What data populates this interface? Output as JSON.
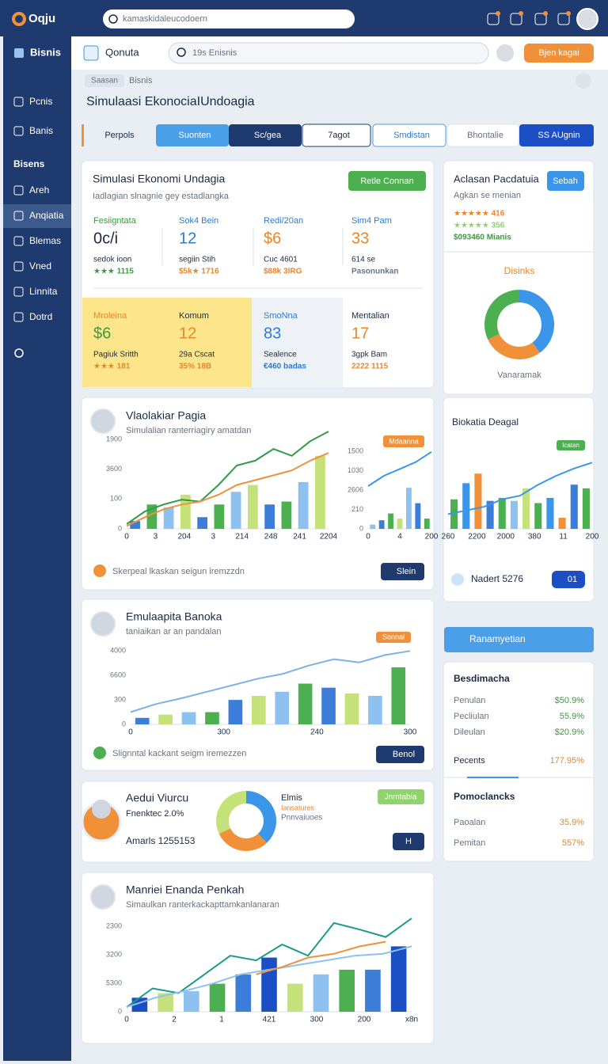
{
  "topbar": {
    "logo": "Oqju",
    "url": "kamaskidaleucodoern"
  },
  "sidebar": {
    "brand": "Bisnis",
    "items": [
      "Pcnis",
      "Banis"
    ],
    "section": "Bisens",
    "subitems": [
      "Areh",
      "Anqiatia",
      "Blemas",
      "Vned",
      "Linnita",
      "Dotrd"
    ]
  },
  "header": {
    "app": "Qonuta",
    "search": "19s Enisnis",
    "button": "Bjen kagai"
  },
  "breadcrumb": [
    "Saasan",
    "Bisnis"
  ],
  "page_title": "Simulaasi EkonociaIUndoagia",
  "tabs": [
    "Perpols",
    "Suonten",
    "Sc/gea",
    "7agot",
    "Smdistan",
    "Bhontalie",
    "SS AUgnin"
  ],
  "summary": {
    "title": "Simulasi Ekonomi Undagia",
    "subtitle": "Iadlagian slnagnie gey estadlangka",
    "button": "Retle Connan",
    "stats": [
      {
        "label": "Fesiigntata",
        "value": "0c/i",
        "sub": "sedok ioon",
        "rating": "★★★ 1115"
      },
      {
        "label": "Sok4 Bein",
        "value": "12",
        "sub": "segiin Stih",
        "rating": "$5k★ 1716"
      },
      {
        "label": "Redi/20an",
        "value": "$6",
        "sub": "Cuc 4601",
        "rating": "$88k 3IRG"
      },
      {
        "label": "Sim4 Pam",
        "value": "33",
        "sub": "614 se",
        "rating": "Pasonunkan"
      },
      {
        "label": "Mroleina",
        "value": "$6",
        "sub": "Pagiuk Sritth",
        "rating": "★★★ 181"
      },
      {
        "label": "Komum",
        "value": "12",
        "sub": "29a Cscat",
        "rating": "35% 18B"
      },
      {
        "label": "SmoNna",
        "value": "83",
        "sub": "Sealence",
        "rating": "€460 badas"
      },
      {
        "label": "Mentalian",
        "value": "17",
        "sub": "3gpk Bam",
        "rating": "2222 1115"
      }
    ]
  },
  "side_card": {
    "title": "Aclasan Pacdatuia",
    "button": "Sebah",
    "subtitle": "Agkan se menian",
    "ratings": [
      "★★★★★ 416",
      "★★★★★ 356",
      "$093460 Mianis"
    ],
    "donut_title": "Disinks",
    "caption": "Vanaramak"
  },
  "card_a": {
    "title": "Vlaolakiar Pagia",
    "subtitle": "Simulalian ranterriagiry amatdan",
    "footer": "Skerpeal lkaskan seigun iremzzdn",
    "button": "Slein",
    "badge": "Mdaanna"
  },
  "card_b": {
    "title": "Biokatia Deagal",
    "badge": "Icatan",
    "footer": "Nadert 5276",
    "button": "01"
  },
  "card_c": {
    "title": "Emulaapita Banoka",
    "subtitle": "taniaikan ar an pandalan",
    "badge": "Sonnal",
    "footer": "Slignntal kackant seigm iremezzen",
    "button": "Benol"
  },
  "card_d": {
    "title": "Aedui Viurcu",
    "line1": "Fnenktec 2.0%",
    "line2": "Amarls 1255153",
    "legend_title": "Elmis",
    "legend_1": "Iansatures",
    "legend_2": "Pnnvaiuoes",
    "badge": "Jnmtabia",
    "button": "H"
  },
  "card_e": {
    "title": "Manriei Enanda Penkah",
    "subtitle": "Simaulkan ranterkackapttamkanlanaran"
  },
  "right_panel": {
    "tab": "Ranamyetian",
    "group_1": "Besdimacha",
    "rows_1": [
      [
        "Penulan",
        "$50.9%"
      ],
      [
        "Pecliulan",
        "55.9%"
      ],
      [
        "Dileulan",
        "$20.9%"
      ],
      [
        "Pecents",
        "177.95%"
      ]
    ],
    "group_2": "Pomoclancks",
    "rows_2": [
      [
        "Paoalan",
        "35.9%"
      ],
      [
        "Pemitan",
        "557%"
      ]
    ]
  },
  "chart_data": [
    {
      "type": "combo",
      "ylim": [
        0,
        100
      ],
      "y_labels": [
        "1900",
        "3600",
        "100",
        "0"
      ],
      "x_labels": [
        "0",
        "3",
        "204",
        "3",
        "214",
        "248",
        "241",
        "2204"
      ],
      "palette": [
        "#3b7dd8",
        "#4caf50",
        "#8ec0f0",
        "#c5e17a"
      ],
      "series": [
        {
          "kind": "bar",
          "values": [
            8,
            25,
            22,
            35,
            12,
            25,
            38,
            45,
            25,
            28,
            48,
            75
          ]
        },
        {
          "kind": "line",
          "color": "#2e9b4a",
          "values": [
            5,
            18,
            25,
            30,
            28,
            45,
            65,
            70,
            82,
            75,
            90,
            100
          ]
        },
        {
          "kind": "line",
          "color": "#f0913a",
          "values": [
            3,
            12,
            20,
            25,
            28,
            35,
            45,
            50,
            55,
            60,
            70,
            78
          ]
        }
      ]
    },
    {
      "type": "combo",
      "ylim": [
        0,
        100
      ],
      "y_labels": [
        "1500",
        "1030",
        "2606",
        "210",
        "0"
      ],
      "x_labels": [
        "0",
        "4",
        "200"
      ],
      "palette": [
        "#8ec0f0",
        "#3b7dd8",
        "#4caf50",
        "#c5e17a"
      ],
      "series": [
        {
          "kind": "bar",
          "values": [
            5,
            10,
            18,
            12,
            48,
            30,
            12
          ]
        },
        {
          "kind": "line",
          "color": "#3b95e8",
          "values": [
            50,
            62,
            70,
            78,
            90
          ]
        }
      ]
    },
    {
      "type": "combo",
      "ylim": [
        0,
        100
      ],
      "y_labels": [],
      "x_labels": [
        "260",
        "2200",
        "2000",
        "380",
        "11",
        "200"
      ],
      "palette": [
        "#4caf50",
        "#3b95e8",
        "#f0913a",
        "#3b7dd8",
        "#4caf50",
        "#8ec0f0",
        "#c5e17a"
      ],
      "series": [
        {
          "kind": "bar",
          "values": [
            40,
            62,
            75,
            38,
            42,
            38,
            55,
            35,
            42,
            15,
            60,
            55
          ]
        },
        {
          "kind": "line",
          "color": "#3b95e8",
          "values": [
            20,
            25,
            30,
            40,
            45,
            60,
            72,
            82,
            90
          ]
        }
      ]
    },
    {
      "type": "combo",
      "ylim": [
        0,
        100
      ],
      "y_labels": [
        "4000",
        "6600",
        "300",
        "0"
      ],
      "x_labels": [
        "0",
        "300",
        "240",
        "300"
      ],
      "palette": [
        "#3b7dd8",
        "#c5e17a",
        "#8ec0f0",
        "#4caf50"
      ],
      "series": [
        {
          "kind": "bar",
          "values": [
            8,
            12,
            15,
            15,
            30,
            35,
            40,
            50,
            45,
            38,
            35,
            70
          ]
        },
        {
          "kind": "line",
          "color": "#7fb1e3",
          "values": [
            15,
            25,
            32,
            40,
            48,
            56,
            62,
            72,
            80,
            76,
            85,
            90
          ]
        }
      ]
    },
    {
      "type": "combo",
      "ylim": [
        0,
        100
      ],
      "y_labels": [
        "2300",
        "3200",
        "5300",
        "0"
      ],
      "x_labels": [
        "0",
        "2",
        "1",
        "421",
        "300",
        "200",
        "x8n"
      ],
      "palette": [
        "#1d4fc4",
        "#c5e17a",
        "#8ec0f0",
        "#4caf50",
        "#3b7dd8"
      ],
      "series": [
        {
          "kind": "bar",
          "values": [
            15,
            20,
            22,
            30,
            40,
            58,
            30,
            40,
            45,
            45,
            70
          ]
        },
        {
          "kind": "line",
          "color": "#1a9b8a",
          "values": [
            5,
            25,
            20,
            40,
            60,
            55,
            72,
            60,
            95,
            88,
            80,
            100
          ]
        },
        {
          "kind": "line",
          "color": "#8ec0f0",
          "values": [
            5,
            15,
            22,
            30,
            40,
            45,
            50,
            55,
            60,
            62,
            70
          ]
        },
        {
          "kind": "line",
          "color": "#f0913a",
          "values": [
            null,
            null,
            null,
            null,
            null,
            40,
            48,
            58,
            62,
            70,
            75,
            null
          ]
        }
      ]
    },
    {
      "type": "pie",
      "values": [
        40,
        28,
        32
      ],
      "colors": [
        "#3b95e8",
        "#f0913a",
        "#4caf50"
      ]
    },
    {
      "type": "pie",
      "values": [
        38,
        30,
        32
      ],
      "colors": [
        "#3b95e8",
        "#f0913a",
        "#c5e17a"
      ]
    }
  ]
}
